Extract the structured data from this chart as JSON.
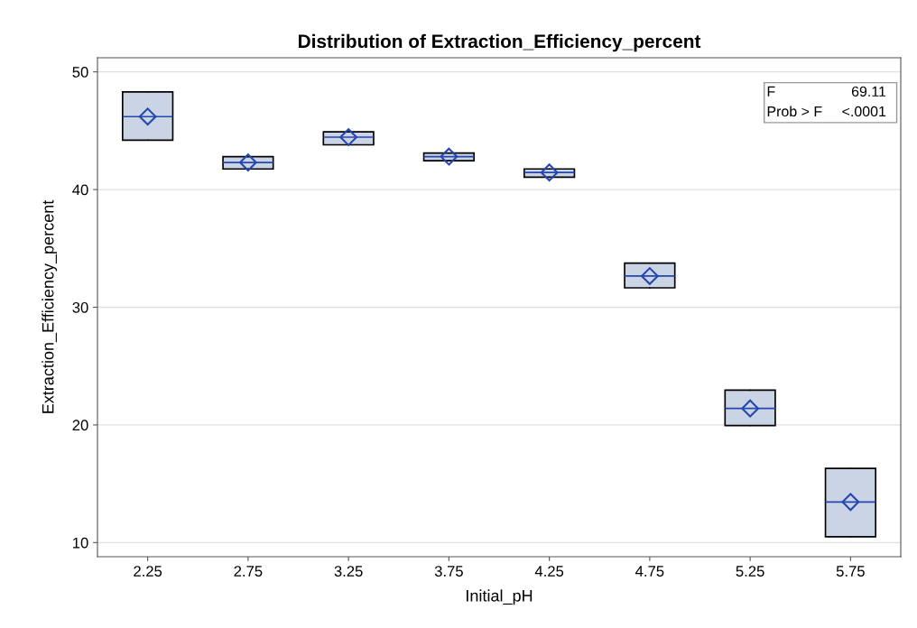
{
  "chart_data": {
    "type": "box",
    "title": "Distribution of Extraction_Efficiency_percent",
    "xlabel": "Initial_pH",
    "ylabel": "Extraction_Efficiency_percent",
    "categories": [
      "2.25",
      "2.75",
      "3.25",
      "3.75",
      "4.25",
      "4.75",
      "5.25",
      "5.75"
    ],
    "boxes": [
      {
        "low": 44.2,
        "q1": 44.2,
        "median": 46.2,
        "q3": 48.3,
        "high": 48.3,
        "mean": 46.2
      },
      {
        "low": 41.75,
        "q1": 41.75,
        "median": 42.3,
        "q3": 42.8,
        "high": 42.8,
        "mean": 42.3
      },
      {
        "low": 43.8,
        "q1": 43.8,
        "median": 44.45,
        "q3": 44.9,
        "high": 44.9,
        "mean": 44.45
      },
      {
        "low": 42.45,
        "q1": 42.45,
        "median": 42.8,
        "q3": 43.1,
        "high": 43.1,
        "mean": 42.8
      },
      {
        "low": 41.05,
        "q1": 41.05,
        "median": 41.45,
        "q3": 41.75,
        "high": 41.75,
        "mean": 41.45
      },
      {
        "low": 31.65,
        "q1": 31.65,
        "median": 32.65,
        "q3": 33.75,
        "high": 33.75,
        "mean": 32.65
      },
      {
        "low": 19.95,
        "q1": 19.95,
        "median": 21.4,
        "q3": 22.95,
        "high": 22.95,
        "mean": 21.4
      },
      {
        "low": 10.5,
        "q1": 10.5,
        "median": 13.45,
        "q3": 16.3,
        "high": 16.3,
        "mean": 13.45
      }
    ],
    "color": "#cad4e4",
    "ylim": [
      8.8,
      51.2
    ],
    "yticks": [
      10,
      20,
      30,
      40,
      50
    ],
    "grid": "y",
    "marker": "diamond",
    "annotations": [
      [
        "F",
        "69.11"
      ],
      [
        "Prob > F",
        "<.0001"
      ]
    ]
  }
}
